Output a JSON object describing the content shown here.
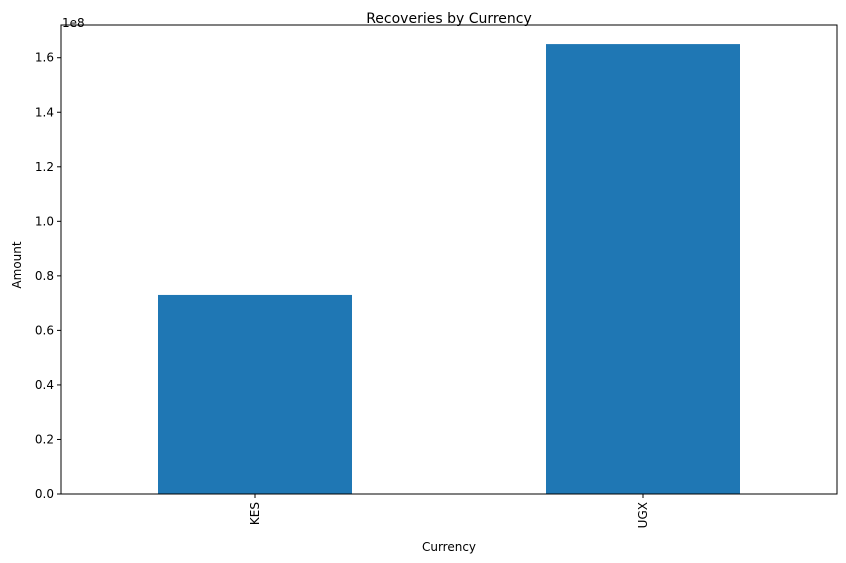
{
  "chart_data": {
    "type": "bar",
    "title": "Recoveries by Currency",
    "xlabel": "Currency",
    "ylabel": "Amount",
    "categories": [
      "KES",
      "UGX"
    ],
    "values": [
      73000000,
      165000000
    ],
    "ylim": [
      0,
      172000000
    ],
    "yticks": [
      0,
      20000000,
      40000000,
      60000000,
      80000000,
      100000000,
      120000000,
      140000000,
      160000000
    ],
    "ytick_labels": [
      "0.0",
      "0.2",
      "0.4",
      "0.6",
      "0.8",
      "1.0",
      "1.2",
      "1.4",
      "1.6"
    ],
    "y_offset_label": "1e8",
    "bar_color": "#1f77b4",
    "grid": false,
    "legend": "none"
  }
}
